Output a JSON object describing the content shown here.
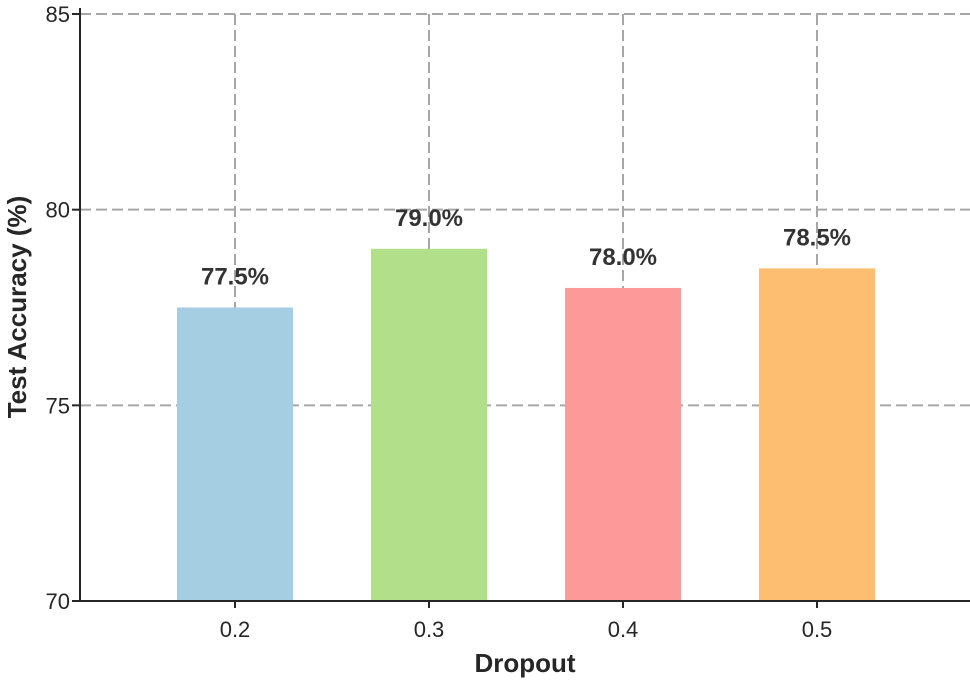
{
  "chart_data": {
    "type": "bar",
    "title": "",
    "xlabel": "Dropout",
    "ylabel": "Test Accuracy (%)",
    "categories": [
      "0.2",
      "0.3",
      "0.4",
      "0.5"
    ],
    "values": [
      77.5,
      79.0,
      78.0,
      78.5
    ],
    "data_labels": [
      "77.5%",
      "79.0%",
      "78.0%",
      "78.5%"
    ],
    "colors": [
      "#a6cee3",
      "#b2df8a",
      "#fb9a99",
      "#fdbf6f"
    ],
    "ylim": [
      70,
      85
    ],
    "yticks": [
      70,
      75,
      80,
      85
    ],
    "grid": true,
    "grid_style": "dashed"
  }
}
